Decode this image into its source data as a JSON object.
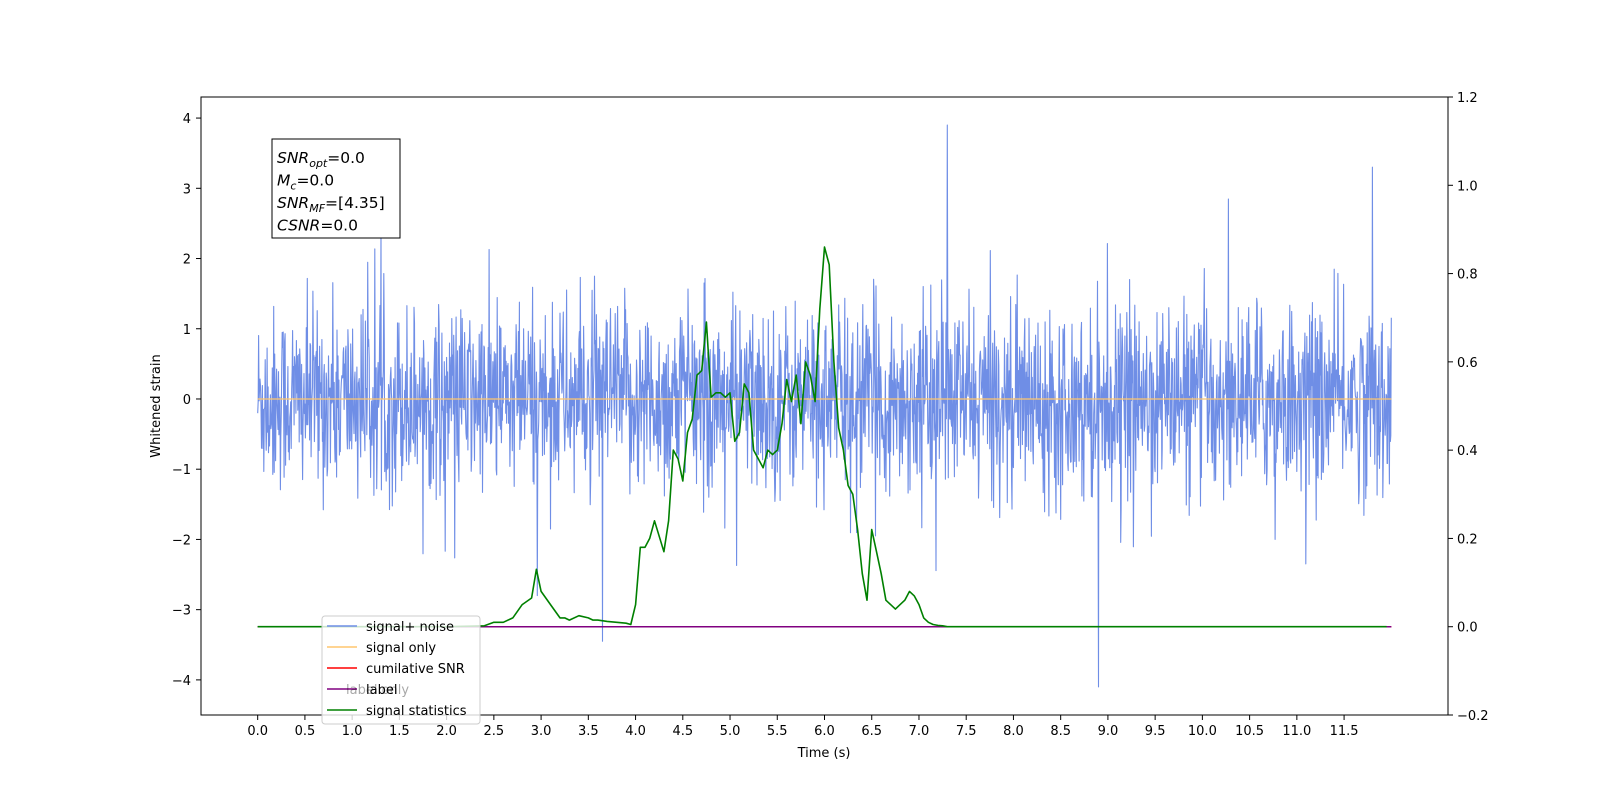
{
  "chart_data": {
    "type": "line",
    "xlabel": "Time (s)",
    "ylabel_left": "Whitened strain",
    "xlim": [
      -0.6,
      12.6
    ],
    "ylim_left": [
      -4.5,
      4.3
    ],
    "ylim_right": [
      -0.2,
      1.2
    ],
    "xticks": [
      "0.0",
      "0.5",
      "1.0",
      "1.5",
      "2.0",
      "2.5",
      "3.0",
      "3.5",
      "4.0",
      "4.5",
      "5.0",
      "5.5",
      "6.0",
      "6.5",
      "7.0",
      "7.5",
      "8.0",
      "8.5",
      "9.0",
      "9.5",
      "10.0",
      "10.5",
      "11.0",
      "11.5"
    ],
    "yticks_left": [
      4,
      3,
      2,
      1,
      0,
      -1,
      -2,
      -3,
      -4
    ],
    "yticks_right": [
      "1.2",
      "1.0",
      "0.8",
      "0.6",
      "0.4",
      "0.2",
      "0.0",
      "−0.2"
    ],
    "info_box": [
      {
        "main": "SNR",
        "sub": "opt",
        "rest": "=0.0"
      },
      {
        "main": "M",
        "sub": "c",
        "rest": "=0.0"
      },
      {
        "main": "SNR",
        "sub": "MF",
        "rest": "=[4.35]"
      },
      {
        "main": "CSNR",
        "sub": "",
        "rest": "=0.0"
      }
    ],
    "series": [
      {
        "name": "signal+ noise",
        "color": "#6f8ee6",
        "axis": "left",
        "kind": "noise",
        "x_range": [
          0,
          12
        ],
        "approx_std": 0.65,
        "notable_peaks": [
          [
            7.3,
            3.9
          ],
          [
            8.9,
            -4.1
          ],
          [
            11.8,
            3.3
          ],
          [
            3.65,
            -3.45
          ]
        ]
      },
      {
        "name": "signal only",
        "color": "#ffc66e",
        "axis": "left",
        "values_constant": 0.0,
        "x_range": [
          0,
          12
        ]
      },
      {
        "name": "cumilative SNR",
        "color": "#ff0000",
        "axis": "right",
        "values_constant": 0.0,
        "x_range": [
          0,
          12
        ]
      },
      {
        "name": "label",
        "color": "#800080",
        "axis": "right",
        "values_constant": 0.0,
        "x_range": [
          0,
          12
        ]
      },
      {
        "name": "label only",
        "color": "#ff0000",
        "axis": "right",
        "hidden": true
      },
      {
        "name": "signal statistics",
        "color": "#008000",
        "axis": "right",
        "x": [
          0.0,
          1.0,
          2.0,
          2.4,
          2.5,
          2.6,
          2.7,
          2.8,
          2.9,
          2.95,
          3.0,
          3.1,
          3.2,
          3.25,
          3.3,
          3.4,
          3.5,
          3.55,
          3.6,
          3.7,
          3.8,
          3.9,
          3.95,
          4.0,
          4.05,
          4.1,
          4.15,
          4.2,
          4.3,
          4.35,
          4.4,
          4.45,
          4.5,
          4.55,
          4.6,
          4.65,
          4.7,
          4.75,
          4.8,
          4.85,
          4.9,
          4.95,
          5.0,
          5.05,
          5.1,
          5.15,
          5.2,
          5.25,
          5.3,
          5.35,
          5.4,
          5.45,
          5.5,
          5.55,
          5.6,
          5.65,
          5.7,
          5.75,
          5.8,
          5.85,
          5.9,
          5.95,
          6.0,
          6.05,
          6.1,
          6.15,
          6.2,
          6.25,
          6.3,
          6.35,
          6.4,
          6.45,
          6.5,
          6.55,
          6.6,
          6.65,
          6.7,
          6.75,
          6.8,
          6.85,
          6.9,
          6.95,
          7.0,
          7.05,
          7.1,
          7.15,
          7.2,
          7.25,
          7.3,
          7.35,
          7.4,
          7.45,
          7.5,
          7.55,
          7.6,
          7.7,
          7.8,
          8.0,
          8.5,
          9.0,
          10.0,
          11.0,
          11.95
        ],
        "y": [
          0.0,
          0.0,
          0.0,
          0.002,
          0.01,
          0.01,
          0.02,
          0.05,
          0.065,
          0.13,
          0.08,
          0.05,
          0.02,
          0.02,
          0.015,
          0.025,
          0.02,
          0.015,
          0.015,
          0.012,
          0.01,
          0.008,
          0.005,
          0.05,
          0.18,
          0.18,
          0.2,
          0.24,
          0.17,
          0.24,
          0.4,
          0.38,
          0.33,
          0.44,
          0.47,
          0.57,
          0.58,
          0.69,
          0.52,
          0.53,
          0.53,
          0.52,
          0.53,
          0.42,
          0.44,
          0.55,
          0.53,
          0.4,
          0.38,
          0.36,
          0.4,
          0.39,
          0.4,
          0.46,
          0.56,
          0.51,
          0.57,
          0.46,
          0.6,
          0.57,
          0.51,
          0.72,
          0.86,
          0.82,
          0.6,
          0.45,
          0.4,
          0.32,
          0.3,
          0.22,
          0.12,
          0.06,
          0.22,
          0.17,
          0.12,
          0.06,
          0.05,
          0.04,
          0.05,
          0.06,
          0.08,
          0.07,
          0.05,
          0.02,
          0.01,
          0.005,
          0.003,
          0.002,
          0.0,
          0.0,
          0.0,
          0.0,
          0.0,
          0.0,
          0.0,
          0.0,
          0.0,
          0.0,
          0.0,
          0.0,
          0.0,
          0.0,
          0.0
        ]
      }
    ],
    "legend_position": "lower-left",
    "grid": false
  }
}
